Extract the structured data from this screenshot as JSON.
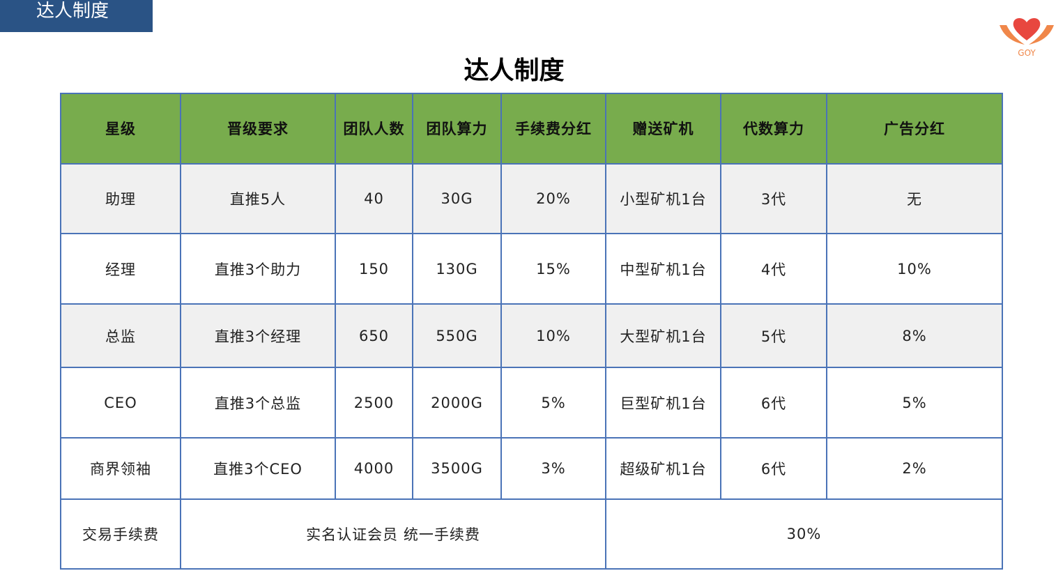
{
  "header_tab": "达人制度",
  "logo_text": "GOY",
  "colors": {
    "tab_bg": "#2a5385",
    "header_bg": "#78ac4d",
    "border": "#4a73b7",
    "logo_heart": "#e8473f",
    "logo_wing": "#f0874a"
  },
  "title": "达人制度",
  "table": {
    "headers": [
      "星级",
      "晋级要求",
      "团队人数",
      "团队算力",
      "手续费分红",
      "赠送矿机",
      "代数算力",
      "广告分红"
    ],
    "rows": [
      [
        "助理",
        "直推5人",
        "40",
        "30G",
        "20%",
        "小型矿机1台",
        "3代",
        "无"
      ],
      [
        "经理",
        "直推3个助力",
        "150",
        "130G",
        "15%",
        "中型矿机1台",
        "4代",
        "10%"
      ],
      [
        "总监",
        "直推3个经理",
        "650",
        "550G",
        "10%",
        "大型矿机1台",
        "5代",
        "8%"
      ],
      [
        "CEO",
        "直推3个总监",
        "2500",
        "2000G",
        "5%",
        "巨型矿机1台",
        "6代",
        "5%"
      ],
      [
        "商界领袖",
        "直推3个CEO",
        "4000",
        "3500G",
        "3%",
        "超级矿机1台",
        "6代",
        "2%"
      ]
    ],
    "footer": {
      "label": "交易手续费",
      "description": "实名认证会员 统一手续费",
      "value": "30%"
    }
  }
}
